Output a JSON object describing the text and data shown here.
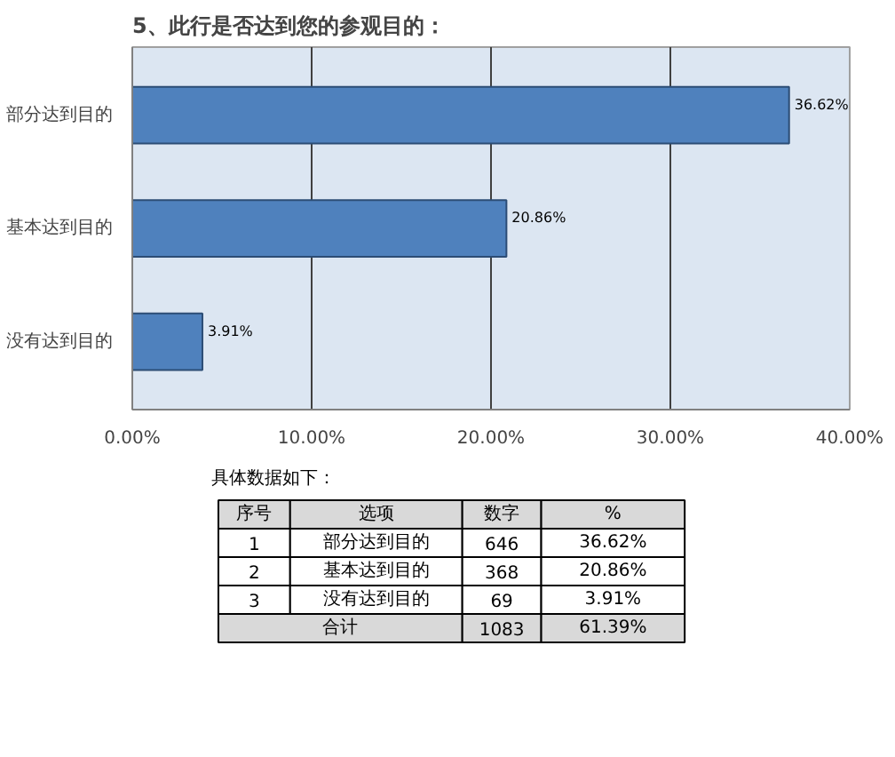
{
  "chart_data": [
    {
      "type": "bar",
      "orientation": "horizontal",
      "title": "5、此行是否达到您的参观目的：",
      "categories": [
        "部分达到目的",
        "基本达到目的",
        "没有达到目的"
      ],
      "values": [
        36.62,
        20.86,
        3.91
      ],
      "color": "#4f81bd",
      "value_labels": [
        "36.62%",
        "20.86%",
        "3.91%"
      ],
      "xlim": [
        0,
        40
      ],
      "xticks": [
        {
          "value": 0,
          "label": "0.00%"
        },
        {
          "value": 10,
          "label": "10.00%"
        },
        {
          "value": 20,
          "label": "20.00%"
        },
        {
          "value": 30,
          "label": "30.00%"
        },
        {
          "value": 40,
          "label": "40.00%"
        }
      ],
      "grid": "x"
    },
    {
      "type": "other",
      "title": "具体数据如下：",
      "annotations": [
        "序号",
        "选项",
        "数字",
        "%",
        "1",
        "部分达到目的",
        "646",
        "36.62%",
        "2",
        "基本达到目的",
        "368",
        "20.86%",
        "3",
        "没有达到目的",
        "69",
        "3.91%",
        "合计",
        "1083",
        "61.39%"
      ]
    }
  ]
}
